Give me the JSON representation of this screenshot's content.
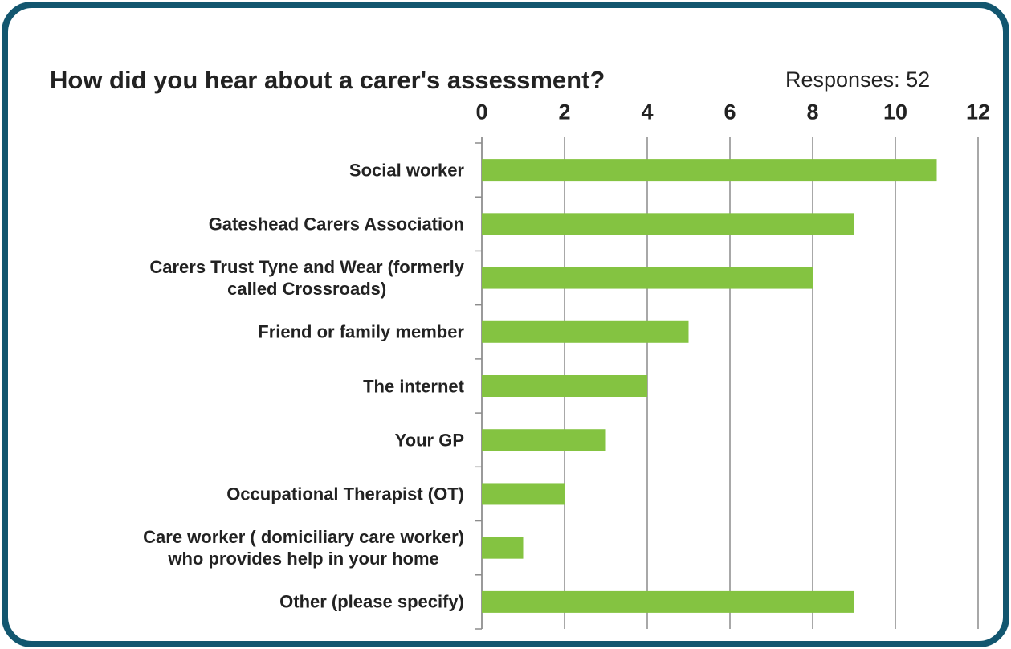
{
  "chart_data": {
    "type": "bar",
    "orientation": "horizontal",
    "title": "How did you hear about a carer's assessment?",
    "subtitle": "Responses: 52",
    "categories": [
      "Social worker",
      "Gateshead Carers Association",
      "Carers Trust Tyne and Wear (formerly\ncalled Crossroads)",
      "Friend or family member",
      "The internet",
      "Your GP",
      "Occupational Therapist (OT)",
      "Care worker ( domiciliary care worker)\nwho provides help in your home",
      "Other (please specify)"
    ],
    "values": [
      11,
      9,
      8,
      5,
      4,
      3,
      2,
      1,
      9
    ],
    "color": "#84c341",
    "xlim": [
      0,
      12
    ],
    "xticks": [
      0,
      2,
      4,
      6,
      8,
      10,
      12
    ],
    "grid": true
  }
}
